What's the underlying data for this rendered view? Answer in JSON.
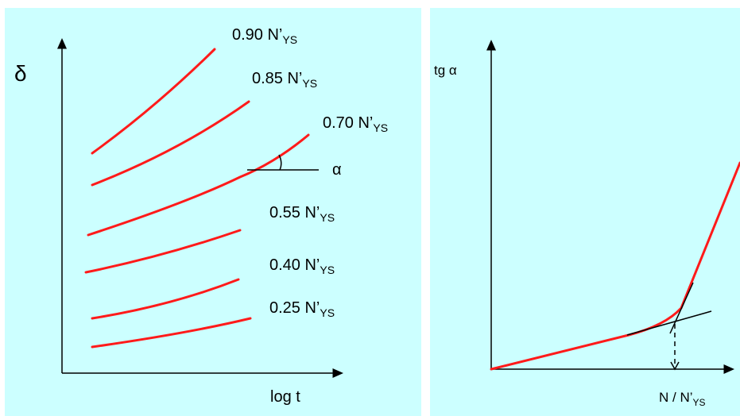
{
  "left_chart": {
    "y_axis_label": "δ",
    "x_axis_label": "log t",
    "angle_label": "α",
    "curves": [
      {
        "label": "0.90 N’",
        "sub": "YS"
      },
      {
        "label": "0.85 N’",
        "sub": "YS"
      },
      {
        "label": "0.70 N’",
        "sub": "YS"
      },
      {
        "label": "0.55 N’",
        "sub": "YS"
      },
      {
        "label": "0.40 N’",
        "sub": "YS"
      },
      {
        "label": "0.25 N’",
        "sub": "YS"
      }
    ]
  },
  "right_chart": {
    "y_axis_label": "tg α",
    "x_axis_label": "N / N’",
    "x_axis_sub": "YS"
  },
  "colors": {
    "panel_bg": "#ccffff",
    "curve": "#ff1a1a",
    "ink": "#000000"
  }
}
